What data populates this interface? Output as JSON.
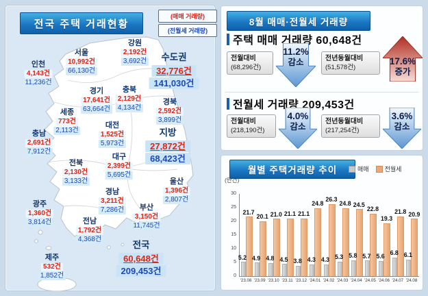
{
  "colors": {
    "sale_red": "#e02414",
    "rent_blue": "#1b49bb",
    "header_blue_top": "#41b1e0",
    "header_blue_bottom": "#0f5fa8",
    "bar_sale_gray": "#c9c9c9",
    "bar_rent_orange": "#eda87a",
    "arrow_down_blue": "#5c96d2",
    "arrow_up_red": "#b93226"
  },
  "map_panel": {
    "title": "전국 주택 거래현황",
    "legend": {
      "sale": "(매매 거래량)",
      "rent": "(전월세 거래량)"
    },
    "regions": [
      {
        "key": "gangwon",
        "name": "강원",
        "sale": "2,192건",
        "rent": "3,692건",
        "emph": false
      },
      {
        "key": "seoul",
        "name": "서울",
        "sale": "10,992건",
        "rent": "66,130건",
        "emph": false
      },
      {
        "key": "incheon",
        "name": "인천",
        "sale": "4,143건",
        "rent": "11,236건",
        "emph": false
      },
      {
        "key": "sudogwon",
        "name": "수도권",
        "sale": "32,776건",
        "rent": "141,030건",
        "emph": true
      },
      {
        "key": "gyeonggi",
        "name": "경기",
        "sale": "17,641건",
        "rent": "63,664건",
        "emph": false
      },
      {
        "key": "chungbuk",
        "name": "충북",
        "sale": "2,129건",
        "rent": "4,134건",
        "emph": false
      },
      {
        "key": "gyeongbuk",
        "name": "경북",
        "sale": "2,592건",
        "rent": "3,899건",
        "emph": false
      },
      {
        "key": "sejong",
        "name": "세종",
        "sale": "773건",
        "rent": "2,113건",
        "emph": false
      },
      {
        "key": "daejeon",
        "name": "대전",
        "sale": "1,525건",
        "rent": "5,973건",
        "emph": false
      },
      {
        "key": "chungnam",
        "name": "충남",
        "sale": "2,691건",
        "rent": "7,912건",
        "emph": false
      },
      {
        "key": "jibang",
        "name": "지방",
        "sale": "27,872건",
        "rent": "68,423건",
        "emph": true
      },
      {
        "key": "jeonbuk",
        "name": "전북",
        "sale": "2,130건",
        "rent": "3,133건",
        "emph": false
      },
      {
        "key": "daegu",
        "name": "대구",
        "sale": "2,399건",
        "rent": "5,695건",
        "emph": false
      },
      {
        "key": "ulsan",
        "name": "울산",
        "sale": "1,396건",
        "rent": "2,807건",
        "emph": false
      },
      {
        "key": "gyeongnam",
        "name": "경남",
        "sale": "3,211건",
        "rent": "7,286건",
        "emph": false
      },
      {
        "key": "gwangju",
        "name": "광주",
        "sale": "1,360건",
        "rent": "3,814건",
        "emph": false
      },
      {
        "key": "busan",
        "name": "부산",
        "sale": "3,150건",
        "rent": "11,745건",
        "emph": false
      },
      {
        "key": "jeonnam",
        "name": "전남",
        "sale": "1,792건",
        "rent": "4,368건",
        "emph": false
      },
      {
        "key": "jeonguk",
        "name": "전국",
        "sale": "60,648건",
        "rent": "209,453건",
        "emph": true
      },
      {
        "key": "jeju",
        "name": "제주",
        "sale": "532건",
        "rent": "1,852건",
        "emph": false
      }
    ]
  },
  "summary_panel": {
    "title": "8월 매매·전월세 거래량",
    "sections": [
      {
        "title": "주택 매매 거래량 60,648건",
        "comparisons": [
          {
            "label": "전월대비",
            "base": "(68,296건)",
            "pct": "11.2%",
            "word": "감소",
            "dir": "down"
          },
          {
            "label": "전년동월대비",
            "base": "(51,578건)",
            "pct": "17.6%",
            "word": "증가",
            "dir": "up"
          }
        ]
      },
      {
        "title": "전월세 거래량 209,453건",
        "comparisons": [
          {
            "label": "전월대비",
            "base": "(218,190건)",
            "pct": "4.0%",
            "word": "감소",
            "dir": "down"
          },
          {
            "label": "전년동월대비",
            "base": "(217,254건)",
            "pct": "3.6%",
            "word": "감소",
            "dir": "down"
          }
        ]
      }
    ]
  },
  "chart_panel": {
    "title": "월별 주택거래량 추이",
    "unit_label": "(만건)"
  },
  "chart_data": {
    "type": "bar",
    "title": "월별 주택거래량 추이",
    "ylabel": "(만건)",
    "categories": [
      "'23.08",
      "'23.09",
      "'23.10",
      "'23.11",
      "'23.12",
      "'24.01",
      "'24.02",
      "'24.03",
      "'24.04",
      "'24.05",
      "'24.06",
      "'24.07",
      "'24.08"
    ],
    "series": [
      {
        "name": "매매",
        "color": "#c9c9c9",
        "values": [
          5.2,
          4.9,
          4.8,
          4.5,
          3.8,
          4.3,
          4.3,
          5.3,
          5.8,
          5.7,
          5.6,
          6.8,
          6.1
        ]
      },
      {
        "name": "전월세",
        "color": "#eda87a",
        "values": [
          21.7,
          20.1,
          21.0,
          21.1,
          21.1,
          24.8,
          26.3,
          24.8,
          24.5,
          22.8,
          19.3,
          21.8,
          20.9
        ]
      }
    ],
    "ylim": [
      0,
      30
    ],
    "yticks": [
      0,
      5,
      10,
      15,
      20,
      25,
      30
    ],
    "legend_position": "top-right",
    "grid": false
  }
}
